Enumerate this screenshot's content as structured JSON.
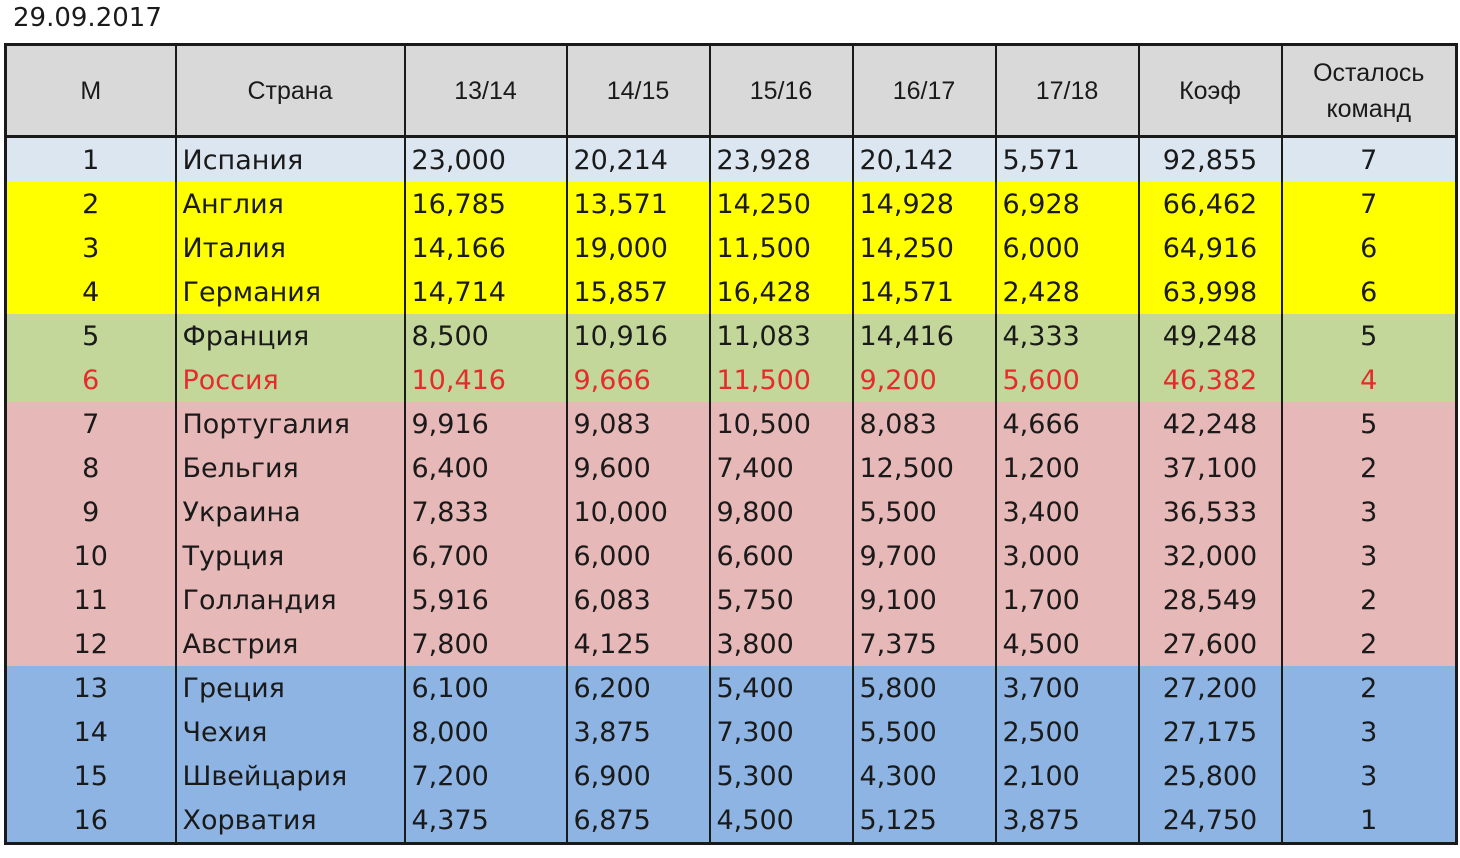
{
  "date": "29.09.2017",
  "columns": {
    "rank": "М",
    "country": "Страна",
    "s1": "13/14",
    "s2": "14/15",
    "s3": "15/16",
    "s4": "16/17",
    "s5": "17/18",
    "coef": "Коэф",
    "teams_line1": "Осталось",
    "teams_line2": "команд"
  },
  "colors": {
    "tier_1": "#dce6f1",
    "tier_2": "#ffff00",
    "tier_3": "#c4d79b",
    "tier_4": "#e6b8b7",
    "tier_5": "#8db4e2",
    "highlight_text": "#e52b2b"
  },
  "rows": [
    {
      "rank": "1",
      "country": "Испания",
      "seasons": [
        "23,000",
        "20,214",
        "23,928",
        "20,142",
        "5,571"
      ],
      "coef": "92,855",
      "teams": "7",
      "tier": 1,
      "highlight": false
    },
    {
      "rank": "2",
      "country": "Англия",
      "seasons": [
        "16,785",
        "13,571",
        "14,250",
        "14,928",
        "6,928"
      ],
      "coef": "66,462",
      "teams": "7",
      "tier": 2,
      "highlight": false
    },
    {
      "rank": "3",
      "country": "Италия",
      "seasons": [
        "14,166",
        "19,000",
        "11,500",
        "14,250",
        "6,000"
      ],
      "coef": "64,916",
      "teams": "6",
      "tier": 2,
      "highlight": false
    },
    {
      "rank": "4",
      "country": "Германия",
      "seasons": [
        "14,714",
        "15,857",
        "16,428",
        "14,571",
        "2,428"
      ],
      "coef": "63,998",
      "teams": "6",
      "tier": 2,
      "highlight": false
    },
    {
      "rank": "5",
      "country": "Франция",
      "seasons": [
        "8,500",
        "10,916",
        "11,083",
        "14,416",
        "4,333"
      ],
      "coef": "49,248",
      "teams": "5",
      "tier": 3,
      "highlight": false
    },
    {
      "rank": "6",
      "country": "Россия",
      "seasons": [
        "10,416",
        "9,666",
        "11,500",
        "9,200",
        "5,600"
      ],
      "coef": "46,382",
      "teams": "4",
      "tier": 3,
      "highlight": true
    },
    {
      "rank": "7",
      "country": "Португалия",
      "seasons": [
        "9,916",
        "9,083",
        "10,500",
        "8,083",
        "4,666"
      ],
      "coef": "42,248",
      "teams": "5",
      "tier": 4,
      "highlight": false
    },
    {
      "rank": "8",
      "country": "Бельгия",
      "seasons": [
        "6,400",
        "9,600",
        "7,400",
        "12,500",
        "1,200"
      ],
      "coef": "37,100",
      "teams": "2",
      "tier": 4,
      "highlight": false
    },
    {
      "rank": "9",
      "country": "Украина",
      "seasons": [
        "7,833",
        "10,000",
        "9,800",
        "5,500",
        "3,400"
      ],
      "coef": "36,533",
      "teams": "3",
      "tier": 4,
      "highlight": false
    },
    {
      "rank": "10",
      "country": "Турция",
      "seasons": [
        "6,700",
        "6,000",
        "6,600",
        "9,700",
        "3,000"
      ],
      "coef": "32,000",
      "teams": "3",
      "tier": 4,
      "highlight": false
    },
    {
      "rank": "11",
      "country": "Голландия",
      "seasons": [
        "5,916",
        "6,083",
        "5,750",
        "9,100",
        "1,700"
      ],
      "coef": "28,549",
      "teams": "2",
      "tier": 4,
      "highlight": false
    },
    {
      "rank": "12",
      "country": "Австрия",
      "seasons": [
        "7,800",
        "4,125",
        "3,800",
        "7,375",
        "4,500"
      ],
      "coef": "27,600",
      "teams": "2",
      "tier": 4,
      "highlight": false
    },
    {
      "rank": "13",
      "country": "Греция",
      "seasons": [
        "6,100",
        "6,200",
        "5,400",
        "5,800",
        "3,700"
      ],
      "coef": "27,200",
      "teams": "2",
      "tier": 5,
      "highlight": false
    },
    {
      "rank": "14",
      "country": "Чехия",
      "seasons": [
        "8,000",
        "3,875",
        "7,300",
        "5,500",
        "2,500"
      ],
      "coef": "27,175",
      "teams": "3",
      "tier": 5,
      "highlight": false
    },
    {
      "rank": "15",
      "country": "Швейцария",
      "seasons": [
        "7,200",
        "6,900",
        "5,300",
        "4,300",
        "2,100"
      ],
      "coef": "25,800",
      "teams": "3",
      "tier": 5,
      "highlight": false
    },
    {
      "rank": "16",
      "country": "Хорватия",
      "seasons": [
        "4,375",
        "6,875",
        "4,500",
        "5,125",
        "3,875"
      ],
      "coef": "24,750",
      "teams": "1",
      "tier": 5,
      "highlight": false
    }
  ]
}
